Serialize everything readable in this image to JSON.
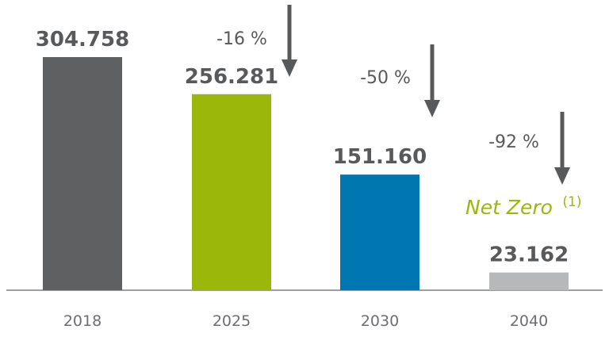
{
  "chart_data": {
    "type": "bar",
    "categories": [
      "2018",
      "2025",
      "2030",
      "2040"
    ],
    "values": [
      304758,
      256281,
      151160,
      23162
    ],
    "value_labels": [
      "304.758",
      "256.281",
      "151.160",
      "23.162"
    ],
    "bar_colors": [
      "#5f6062",
      "#9ab70a",
      "#0077b0",
      "#b7b8ba"
    ],
    "reductions": [
      {
        "from": "2018",
        "to": "2025",
        "label": "-16 %"
      },
      {
        "from": "2018",
        "to": "2030",
        "label": "-50 %"
      },
      {
        "from": "2018",
        "to": "2040",
        "label": "-92 %"
      }
    ],
    "annotation": {
      "category": "2040",
      "text": "Net Zero",
      "superscript": "(1)",
      "color": "#9ab70a"
    },
    "arrow_color": "#58595b",
    "axis_color": "#9d9fa2",
    "ylim": [
      0,
      304758
    ],
    "title": "",
    "xlabel": "",
    "ylabel": ""
  }
}
